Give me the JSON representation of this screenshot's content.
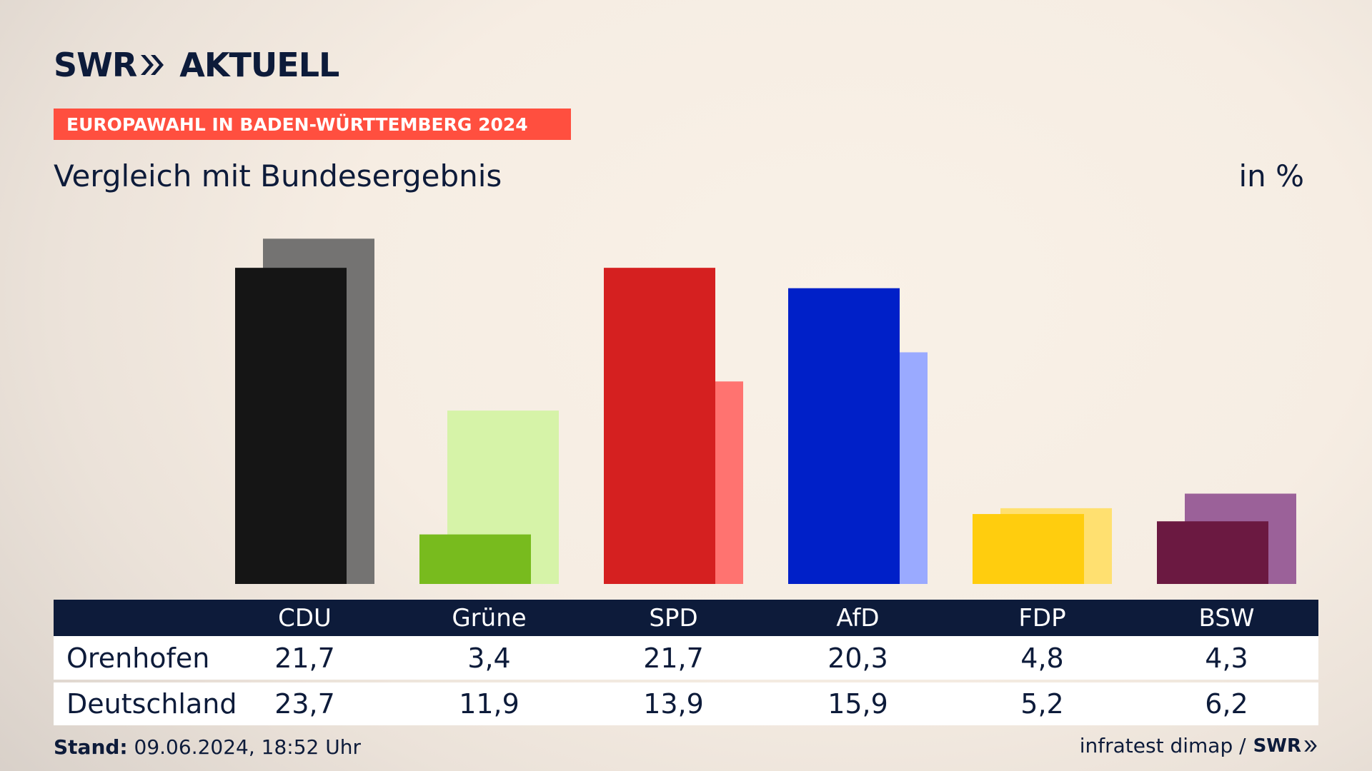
{
  "header": {
    "logo_swr": "SWR",
    "logo_aktuell": "AKTUELL",
    "badge": "EUROPAWAHL IN BADEN-WÜRTTEMBERG 2024",
    "subtitle": "Vergleich mit Bundesergebnis",
    "unit": "in %"
  },
  "chart_data": {
    "type": "bar",
    "categories": [
      "CDU",
      "Grüne",
      "SPD",
      "AfD",
      "FDP",
      "BSW"
    ],
    "series": [
      {
        "name": "Orenhofen",
        "values": [
          21.7,
          3.4,
          21.7,
          20.3,
          4.8,
          4.3
        ],
        "colors": [
          "#151515",
          "#78bb1e",
          "#d52020",
          "#0020c8",
          "#ffcd0e",
          "#6b1941"
        ]
      },
      {
        "name": "Deutschland",
        "values": [
          23.7,
          11.9,
          13.9,
          15.9,
          5.2,
          6.2
        ],
        "colors": [
          "#747372",
          "#d6f3a8",
          "#ff7370",
          "#9aaaff",
          "#ffe070",
          "#9b6199"
        ]
      }
    ],
    "ylim": [
      0,
      24.5
    ],
    "table_values": {
      "Orenhofen": [
        "21,7",
        "3,4",
        "21,7",
        "20,3",
        "4,8",
        "4,3"
      ],
      "Deutschland": [
        "23,7",
        "11,9",
        "13,9",
        "15,9",
        "5,2",
        "6,2"
      ]
    }
  },
  "footer": {
    "stand_label": "Stand:",
    "stand_value": "09.06.2024, 18:52 Uhr",
    "source": "infratest dimap /",
    "source_logo": "SWR"
  },
  "colors": {
    "navy": "#0d1b3a",
    "badge": "#ff4f3f"
  }
}
